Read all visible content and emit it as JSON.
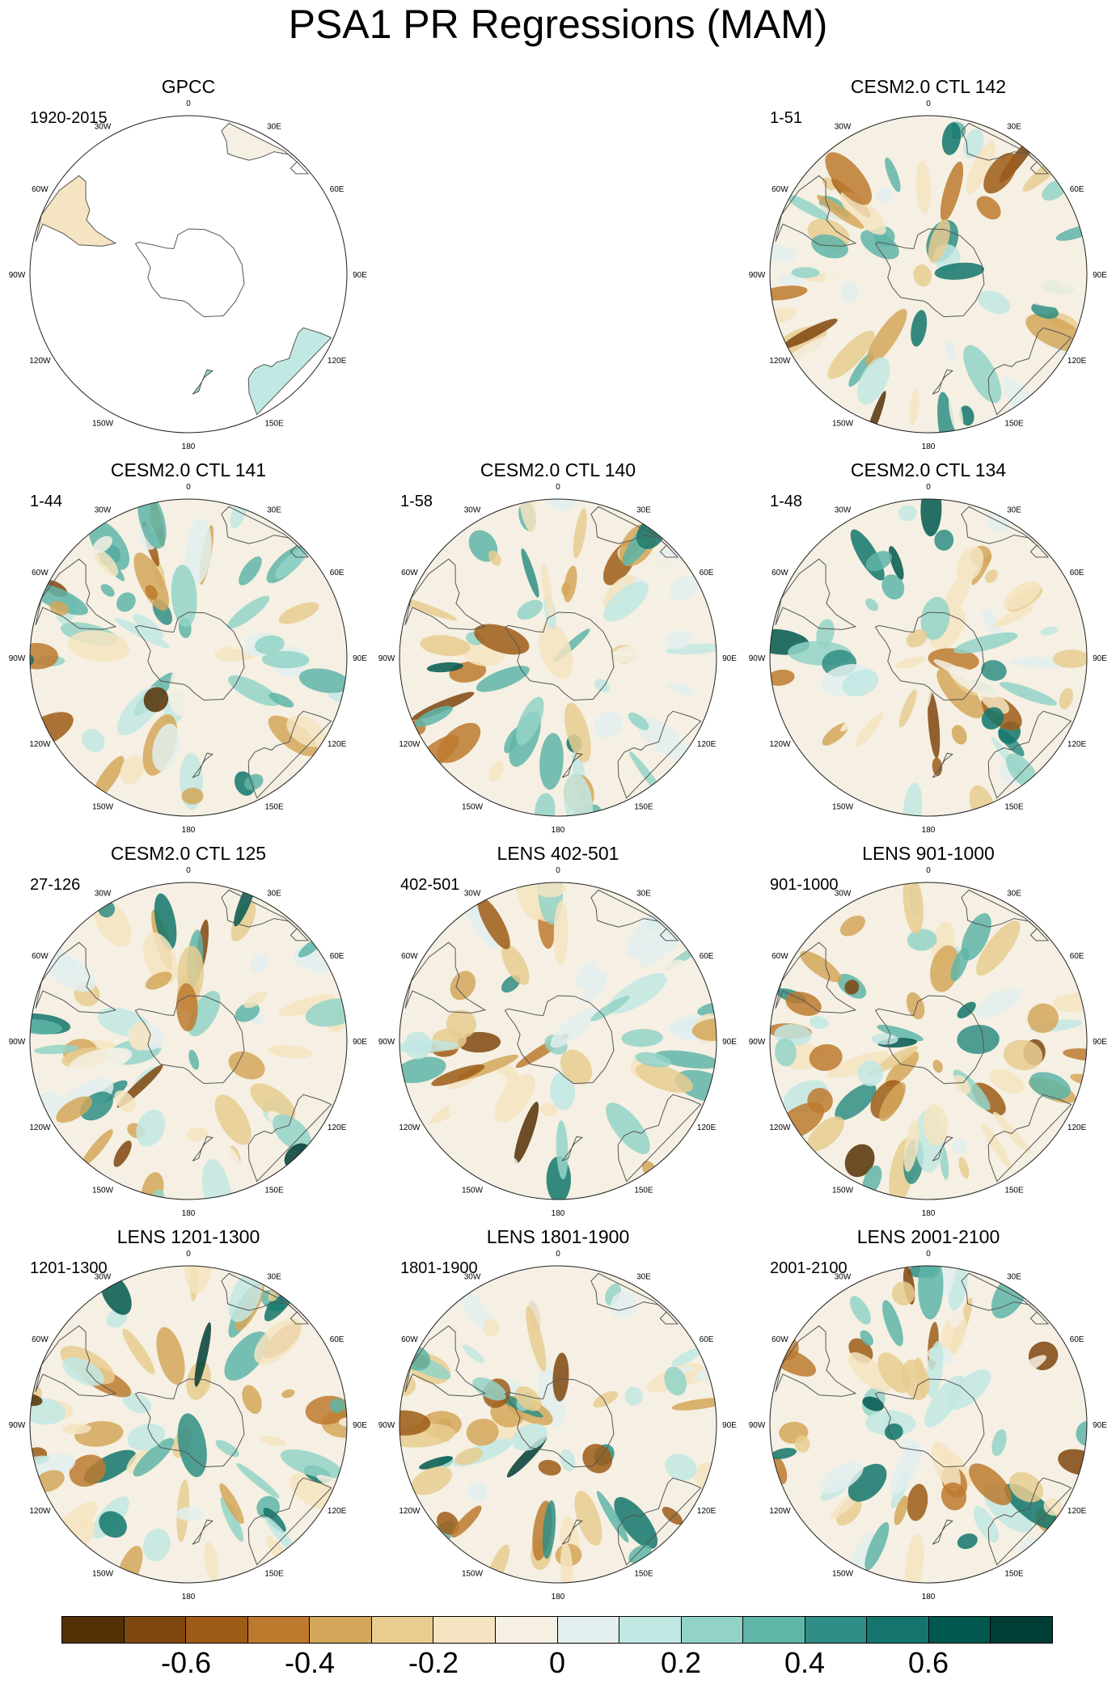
{
  "title": "PSA1 PR Regressions (MAM)",
  "lon_labels": [
    "0",
    "30E",
    "60E",
    "90E",
    "120E",
    "150E",
    "180",
    "150W",
    "120W",
    "90W",
    "60W",
    "30W"
  ],
  "panels": [
    {
      "id": "gpcc",
      "title": "GPCC",
      "range": "1920-2015",
      "data_coverage": "land-only"
    },
    {
      "id": "ctl142",
      "title": "CESM2.0 CTL 142",
      "range": "1-51",
      "data_coverage": "full"
    },
    {
      "id": "ctl141",
      "title": "CESM2.0 CTL 141",
      "range": "1-44",
      "data_coverage": "full"
    },
    {
      "id": "ctl140",
      "title": "CESM2.0 CTL 140",
      "range": "1-58",
      "data_coverage": "full"
    },
    {
      "id": "ctl134",
      "title": "CESM2.0 CTL 134",
      "range": "1-48",
      "data_coverage": "full"
    },
    {
      "id": "ctl125",
      "title": "CESM2.0 CTL 125",
      "range": "27-126",
      "data_coverage": "full"
    },
    {
      "id": "lens402",
      "title": "LENS 402-501",
      "range": "402-501",
      "data_coverage": "full"
    },
    {
      "id": "lens901",
      "title": "LENS 901-1000",
      "range": "901-1000",
      "data_coverage": "full"
    },
    {
      "id": "lens1201",
      "title": "LENS 1201-1300",
      "range": "1201-1300",
      "data_coverage": "full"
    },
    {
      "id": "lens1801",
      "title": "LENS 1801-1900",
      "range": "1801-1900",
      "data_coverage": "full"
    },
    {
      "id": "lens2001",
      "title": "LENS 2001-2100",
      "range": "2001-2100",
      "data_coverage": "full"
    }
  ],
  "colorbar": {
    "colors": [
      "#543005",
      "#7f470e",
      "#9e5c17",
      "#bd7a2f",
      "#d3a75b",
      "#e8cd90",
      "#f5e4c1",
      "#f5f0e3",
      "#e2efee",
      "#c2e8e3",
      "#93d3c7",
      "#5fb5a8",
      "#2f8e85",
      "#13756b",
      "#01584f",
      "#003d35"
    ],
    "labels": [
      "-0.6",
      "-0.4",
      "-0.2",
      "0",
      "0.2",
      "0.4",
      "0.6"
    ],
    "min": -0.8,
    "max": 0.8,
    "step": 0.1
  }
}
